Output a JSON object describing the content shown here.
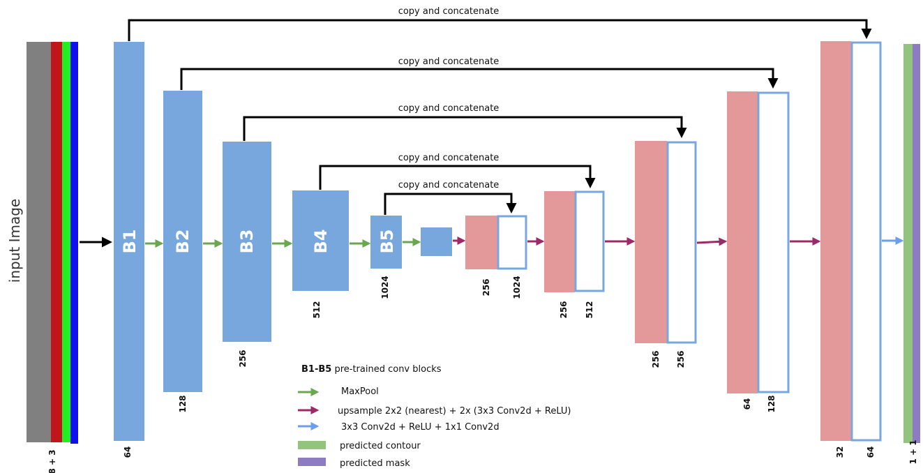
{
  "input": {
    "label": "input Image",
    "channels_label": "8 + 3"
  },
  "colors": {
    "encoder": "#77a7dc",
    "decoder": "#e39999",
    "maxpool_arrow": "#6aa84f",
    "upsample_arrow": "#9c2a66",
    "conv_arrow": "#6d9eeb",
    "contour": "#93c47d",
    "mask": "#8e7cc3",
    "input_gray": "#808080",
    "input_red": "#c0161b",
    "input_green": "#22ee22",
    "input_blue": "#1010ee"
  },
  "encoder_blocks": [
    {
      "name": "B1",
      "channels": "64"
    },
    {
      "name": "B2",
      "channels": "128"
    },
    {
      "name": "B3",
      "channels": "256"
    },
    {
      "name": "B4",
      "channels": "512"
    },
    {
      "name": "B5",
      "channels": "1024"
    }
  ],
  "decoder_stages": [
    {
      "up": "256",
      "skip": "1024"
    },
    {
      "up": "256",
      "skip": "512"
    },
    {
      "up": "256",
      "skip": "256"
    },
    {
      "up": "64",
      "skip": "128"
    },
    {
      "up": "32",
      "skip": "64"
    }
  ],
  "skip_connections": [
    "copy and concatenate",
    "copy and concatenate",
    "copy and concatenate",
    "copy and concatenate",
    "copy and concatenate"
  ],
  "output": {
    "channels_label": "1 + 1"
  },
  "legend": {
    "title_bold": "B1-B5",
    "title_rest": " pre-trained conv blocks",
    "maxpool": "MaxPool",
    "upsample": "upsample 2x2 (nearest) + 2x (3x3 Conv2d + ReLU)",
    "conv": "3x3 Conv2d + ReLU + 1x1 Conv2d",
    "contour": "predicted contour",
    "mask": "predicted mask"
  }
}
